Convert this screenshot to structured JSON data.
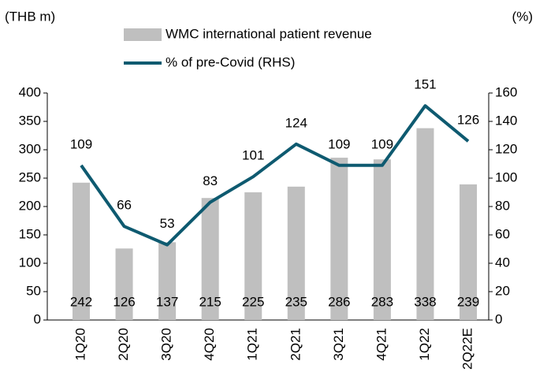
{
  "chart_data": {
    "type": "bar",
    "y_label": "(THB m)",
    "y2_label": "(%)",
    "categories": [
      "1Q20",
      "2Q20",
      "3Q20",
      "4Q20",
      "1Q21",
      "2Q21",
      "3Q21",
      "4Q21",
      "1Q22",
      "2Q22E"
    ],
    "series": [
      {
        "name": "WMC international patient revenue",
        "type": "bar",
        "color": "#bfbfbf",
        "values": [
          242,
          126,
          137,
          215,
          225,
          235,
          286,
          283,
          338,
          239
        ]
      },
      {
        "name": "% of pre-Covid (RHS)",
        "type": "line",
        "axis": "y2",
        "color": "#0e5a70",
        "values": [
          109,
          66,
          53,
          83,
          101,
          124,
          109,
          109,
          151,
          126
        ]
      }
    ],
    "ylim": [
      0,
      400
    ],
    "yticks": [
      0,
      50,
      100,
      150,
      200,
      250,
      300,
      350,
      400
    ],
    "y2lim": [
      0,
      160
    ],
    "y2ticks": [
      0,
      20,
      40,
      60,
      80,
      100,
      120,
      140,
      160
    ],
    "legend": "top",
    "grid": false
  }
}
